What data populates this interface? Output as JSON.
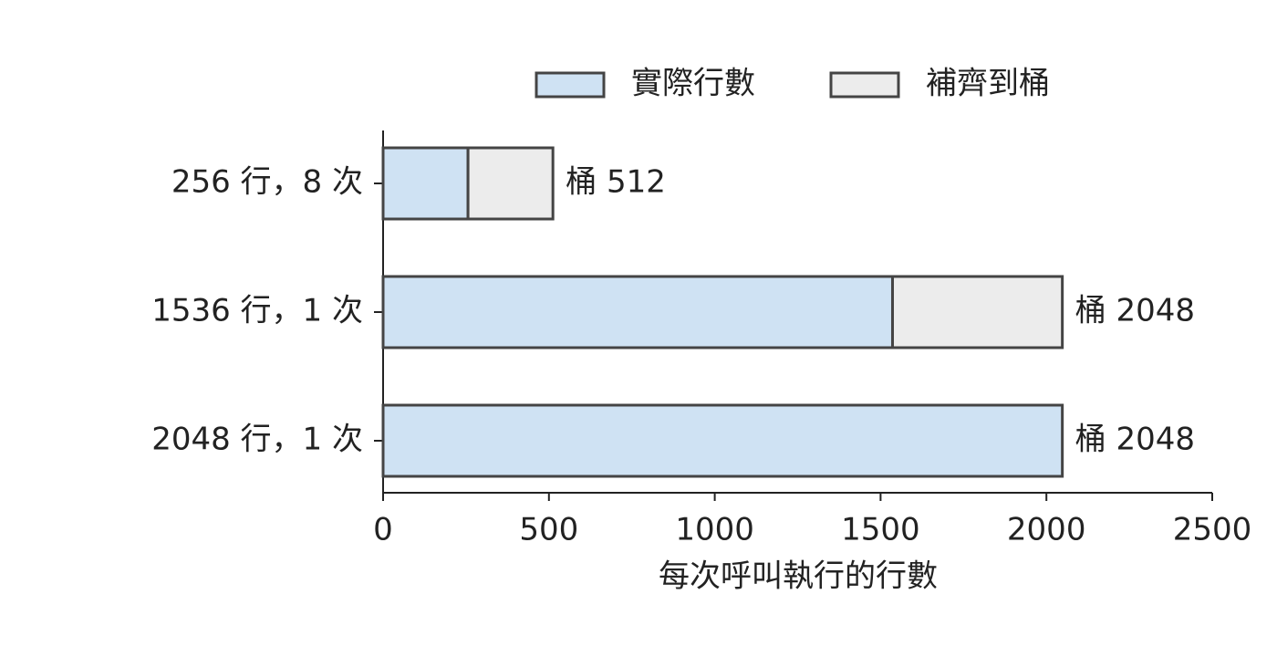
{
  "chart_data": {
    "type": "stacked_barh",
    "categories": [
      "256 行，8 次",
      "1536 行，1 次",
      "2048 行，1 次"
    ],
    "series": [
      {
        "name": "實際行數",
        "color": "#cfe2f3",
        "values": [
          256,
          1536,
          2048
        ]
      },
      {
        "name": "補齊到桶",
        "color": "#ececec",
        "values": [
          256,
          512,
          0
        ]
      }
    ],
    "bar_labels": [
      "桶 512",
      "桶 2048",
      "桶 2048"
    ],
    "xlabel": "每次呼叫執行的行數",
    "xlim": [
      0,
      2500
    ],
    "xticks": [
      0,
      500,
      1000,
      1500,
      2000,
      2500
    ],
    "legend": "top",
    "edge_color": "#444444"
  }
}
